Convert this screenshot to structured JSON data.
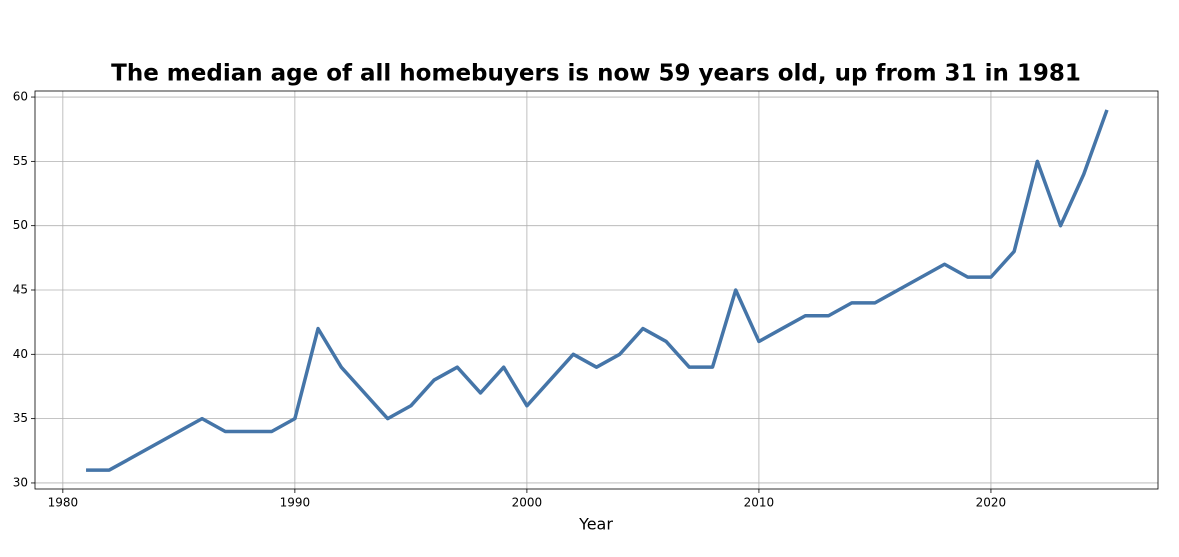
{
  "chart_data": {
    "type": "line",
    "title": "The median age of all homebuyers is now 59 years old, up from 31 in 1981",
    "xlabel": "Year",
    "x": [
      1981,
      1982,
      1986,
      1987,
      1988,
      1989,
      1990,
      1991,
      1992,
      1994,
      1995,
      1996,
      1997,
      1998,
      1999,
      2000,
      2001,
      2002,
      2003,
      2004,
      2005,
      2006,
      2007,
      2008,
      2009,
      2010,
      2011,
      2012,
      2013,
      2014,
      2015,
      2016,
      2017,
      2018,
      2019,
      2020,
      2021,
      2022,
      2023,
      2024,
      2025
    ],
    "series": [
      {
        "name": "Median age",
        "color": "#4575a8",
        "values": [
          31,
          31,
          35,
          34,
          34,
          34,
          35,
          42,
          39,
          35,
          36,
          38,
          39,
          37,
          39,
          36,
          38,
          40,
          39,
          40,
          42,
          41,
          39,
          39,
          45,
          41,
          42,
          43,
          43,
          44,
          44,
          45,
          46,
          47,
          46,
          46,
          48,
          55,
          50,
          54,
          59
        ]
      }
    ],
    "xlim": [
      1978.8,
      2027.2
    ],
    "xticks": [
      1980,
      1990,
      2000,
      2010,
      2020
    ],
    "ylim": [
      29.53,
      60.47
    ],
    "yticks": [
      30,
      35,
      40,
      45,
      50,
      55,
      60
    ],
    "grid": true
  }
}
